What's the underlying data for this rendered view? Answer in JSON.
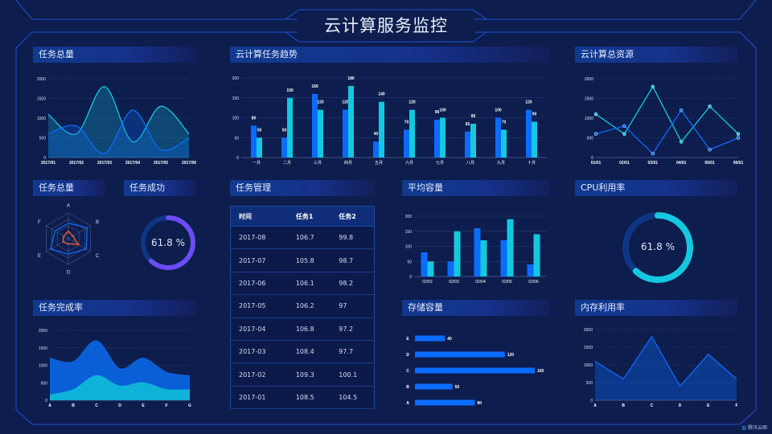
{
  "header": {
    "title": "云计算服务监控"
  },
  "colors": {
    "blue": "#0a6cff",
    "cyan": "#14c8e0",
    "purple": "#6b4cf5",
    "orange": "#ff5a2b",
    "background": "#0d1d4d"
  },
  "panels": {
    "task_total": "任务总量",
    "trend": "云计算任务趋势",
    "resources": "云计算总资源",
    "task_total_radar": "任务总量",
    "task_success": "任务成功",
    "task_manage": "任务管理",
    "avg_capacity": "平均容量",
    "cpu": "CPU利用率",
    "completion": "任务完成率",
    "storage": "存储容量",
    "memory": "内存利用率"
  },
  "task_success": {
    "value": 61.8,
    "label": "61.8 %"
  },
  "cpu": {
    "value": 61.8,
    "label": "61.8 %"
  },
  "table": {
    "headers": [
      "时间",
      "任务1",
      "任务2"
    ],
    "rows": [
      [
        "2017-08",
        "106.7",
        "99.8"
      ],
      [
        "2017-07",
        "105.8",
        "98.7"
      ],
      [
        "2017-06",
        "106.1",
        "98.2"
      ],
      [
        "2017-05",
        "106.2",
        "97"
      ],
      [
        "2017-04",
        "106.8",
        "97.2"
      ],
      [
        "2017-03",
        "108.4",
        "97.7"
      ],
      [
        "2017-02",
        "109.3",
        "100.1"
      ],
      [
        "2017-01",
        "108.5",
        "104.5"
      ]
    ]
  },
  "watermark": "腾讯云图",
  "chart_data": [
    {
      "id": "task_total",
      "type": "area",
      "smooth": true,
      "x": [
        "2017/01",
        "2017/02",
        "2017/03",
        "2017/04",
        "2017/05",
        "2017/06"
      ],
      "ylim": [
        0,
        2000
      ],
      "yticks": [
        0,
        500,
        1000,
        1500,
        2000
      ],
      "grid": true,
      "series": [
        {
          "values": [
            1100,
            600,
            1800,
            400,
            1300,
            600
          ],
          "color": "#14c8e0"
        },
        {
          "values": [
            600,
            800,
            100,
            1200,
            200,
            500
          ],
          "color": "#0a6cff"
        }
      ]
    },
    {
      "id": "trend",
      "type": "bar",
      "categories": [
        "一月",
        "二月",
        "三月",
        "四月",
        "五月",
        "六月",
        "七月",
        "八月",
        "九月",
        "十月"
      ],
      "ylim": [
        0,
        200
      ],
      "yticks": [
        0,
        50,
        100,
        150,
        200
      ],
      "grid": true,
      "data_labels": true,
      "series": [
        {
          "values": [
            80,
            50,
            160,
            120,
            40,
            70,
            95,
            65,
            100,
            120
          ],
          "color": "#0a6cff"
        },
        {
          "values": [
            50,
            150,
            120,
            180,
            140,
            120,
            100,
            85,
            70,
            90
          ],
          "color": "#14c8e0"
        }
      ]
    },
    {
      "id": "resources",
      "type": "line",
      "x": [
        "01/01",
        "02/01",
        "03/01",
        "04/01",
        "05/01",
        "06/01"
      ],
      "ylim": [
        0,
        2000
      ],
      "yticks": [
        0,
        500,
        1000,
        1500,
        2000
      ],
      "grid": true,
      "markers": true,
      "series": [
        {
          "values": [
            1100,
            600,
            1800,
            400,
            1300,
            600
          ],
          "color": "#14c8e0"
        },
        {
          "values": [
            600,
            800,
            100,
            1200,
            200,
            500
          ],
          "color": "#0a6cff"
        }
      ]
    },
    {
      "id": "radar",
      "type": "radar",
      "indicators": [
        "A",
        "B",
        "C",
        "D",
        "E",
        "F"
      ],
      "max": 100,
      "series": [
        {
          "values": [
            60,
            85,
            80,
            60,
            80,
            60
          ],
          "color": "#0a6cff"
        },
        {
          "values": [
            30,
            20,
            45,
            20,
            25,
            20
          ],
          "color": "#ff5a2b"
        }
      ]
    },
    {
      "id": "avg_capacity",
      "type": "bar",
      "categories": [
        "02/02",
        "02/03",
        "02/04",
        "02/05",
        "02/06"
      ],
      "ylim": [
        0,
        200
      ],
      "yticks": [
        0,
        50,
        100,
        150,
        200
      ],
      "grid": true,
      "series": [
        {
          "values": [
            80,
            50,
            160,
            120,
            40
          ],
          "color": "#0a6cff"
        },
        {
          "values": [
            50,
            150,
            120,
            190,
            140
          ],
          "color": "#14c8e0"
        }
      ]
    },
    {
      "id": "completion",
      "type": "area",
      "smooth": true,
      "x": [
        "A",
        "B",
        "C",
        "D",
        "E",
        "F",
        "G"
      ],
      "ylim": [
        0,
        2000
      ],
      "yticks": [
        0,
        500,
        1000,
        1500,
        2000
      ],
      "grid": true,
      "series": [
        {
          "values": [
            1200,
            1100,
            1700,
            900,
            1200,
            800,
            700
          ],
          "color": "#0a5fd6"
        },
        {
          "values": [
            150,
            300,
            700,
            400,
            500,
            300,
            300
          ],
          "color": "#0fb3da"
        }
      ]
    },
    {
      "id": "storage",
      "type": "hbar",
      "categories": [
        "A",
        "B",
        "C",
        "D",
        "E"
      ],
      "values": [
        80,
        50,
        160,
        120,
        40
      ],
      "xlim": [
        0,
        160
      ],
      "data_labels": true,
      "color": "#0a6cff"
    },
    {
      "id": "memory",
      "type": "area",
      "smooth": false,
      "x": [
        "A",
        "B",
        "C",
        "D",
        "E",
        "F"
      ],
      "ylim": [
        0,
        2000
      ],
      "yticks": [
        0,
        500,
        1000,
        1500,
        2000
      ],
      "grid": true,
      "series": [
        {
          "values": [
            1100,
            600,
            1800,
            400,
            1300,
            600
          ],
          "color": "#0a6cff"
        }
      ]
    }
  ]
}
